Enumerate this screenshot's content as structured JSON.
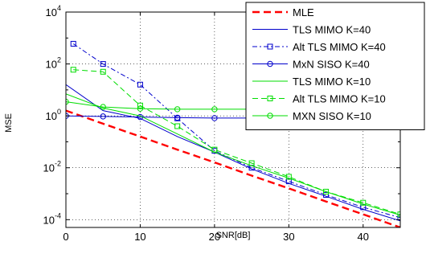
{
  "chart_data": {
    "type": "line",
    "title": "",
    "xlabel": "SNR[dB]",
    "ylabel": "MSE",
    "xlim": [
      0,
      45
    ],
    "ylim_log10": [
      -4.3,
      4
    ],
    "y_scale": "log",
    "grid": true,
    "legend_position": "top-right",
    "x_ticks": [
      0,
      10,
      20,
      30,
      40
    ],
    "x_tick_labels": [
      "0",
      "10",
      "20",
      "30",
      "40"
    ],
    "y_ticks_log10": [
      4,
      2,
      0,
      -2,
      -4
    ],
    "y_tick_labels": [
      {
        "base": "10",
        "exp": "4"
      },
      {
        "base": "10",
        "exp": "2"
      },
      {
        "base": "10",
        "exp": "0"
      },
      {
        "base": "10",
        "exp": "-2"
      },
      {
        "base": "10",
        "exp": "-4"
      }
    ],
    "series": [
      {
        "name": "MLE",
        "color": "#ff0000",
        "dash": "9,5",
        "width": 2.4,
        "marker": "none",
        "x": [
          0,
          5,
          10,
          15,
          20,
          25,
          30,
          35,
          40,
          45
        ],
        "y": [
          1.6,
          0.5,
          0.16,
          0.05,
          0.016,
          0.005,
          0.0016,
          0.0005,
          0.00016,
          5e-05
        ]
      },
      {
        "name": "TLS MIMO K=40",
        "color": "#0000cc",
        "dash": "",
        "width": 1,
        "marker": "none",
        "x": [
          0,
          5,
          10,
          15,
          20,
          25,
          30,
          35,
          40,
          45
        ],
        "y": [
          16,
          1.6,
          0.8,
          0.16,
          0.04,
          0.009,
          0.0025,
          0.0008,
          0.00025,
          9e-05
        ]
      },
      {
        "name": "Alt TLS MIMO K=40",
        "color": "#0000cc",
        "dash": "6,3,2,3",
        "width": 1,
        "marker": "square",
        "x": [
          1,
          5,
          10,
          15,
          20,
          25,
          30,
          35,
          40,
          45
        ],
        "y": [
          600,
          100,
          16,
          0.8,
          0.045,
          0.01,
          0.003,
          0.0009,
          0.0003,
          0.00012
        ]
      },
      {
        "name": "MxN SISO K=40",
        "color": "#0000cc",
        "dash": "",
        "width": 1,
        "marker": "circle",
        "x": [
          0,
          5,
          10,
          15,
          20,
          25,
          30,
          35,
          40,
          45
        ],
        "y": [
          1,
          0.95,
          0.9,
          0.85,
          0.82,
          0.82,
          0.82,
          0.82,
          0.82,
          0.82
        ]
      },
      {
        "name": "TLS MIMO K=10",
        "color": "#00dd00",
        "dash": "",
        "width": 1,
        "marker": "none",
        "x": [
          0,
          5,
          10,
          15,
          20,
          25,
          30,
          35,
          40,
          45
        ],
        "y": [
          7,
          2,
          1,
          0.2,
          0.04,
          0.012,
          0.004,
          0.0012,
          0.0004,
          0.00015
        ]
      },
      {
        "name": "Alt TLS MIMO K=10",
        "color": "#00dd00",
        "dash": "7,4",
        "width": 1,
        "marker": "square",
        "x": [
          1,
          5,
          10,
          15,
          20,
          25,
          30,
          35,
          40,
          45
        ],
        "y": [
          60,
          50,
          2.5,
          0.4,
          0.05,
          0.015,
          0.0045,
          0.0012,
          0.00045,
          0.00016
        ]
      },
      {
        "name": "MXN SISO K=10",
        "color": "#00dd00",
        "dash": "",
        "width": 1,
        "marker": "circle",
        "x": [
          0,
          5,
          10,
          15,
          20,
          25,
          30,
          35,
          40,
          45
        ],
        "y": [
          3.5,
          2.2,
          1.9,
          1.8,
          1.8,
          1.8,
          1.8,
          1.8,
          1.8,
          1.8
        ]
      }
    ]
  }
}
